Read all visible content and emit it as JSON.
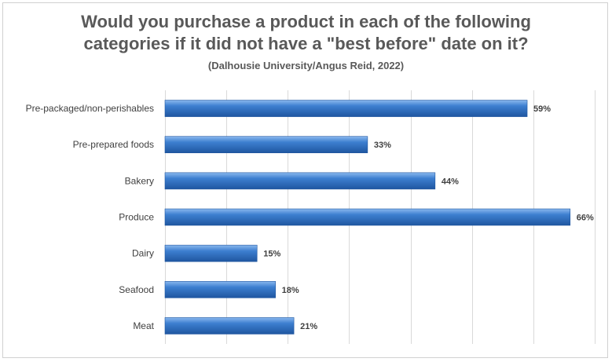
{
  "chart_data": {
    "type": "bar",
    "orientation": "horizontal",
    "title": "Would you purchase a product in each of the following categories if it did not have a \"best before\" date on it?",
    "subtitle": "(Dalhousie University/Angus Reid, 2022)",
    "categories": [
      "Pre-packaged/non-perishables",
      "Pre-prepared foods",
      "Bakery",
      "Produce",
      "Dairy",
      "Seafood",
      "Meat"
    ],
    "values": [
      59,
      33,
      44,
      66,
      15,
      18,
      21
    ],
    "value_labels": [
      "59%",
      "33%",
      "44%",
      "66%",
      "15%",
      "18%",
      "21%"
    ],
    "xlim": [
      0,
      70
    ],
    "grid": true,
    "legend": "none",
    "bar_color": "#2f6fc2",
    "colors": {
      "bar_light": "#6fa6e6",
      "bar_dark": "#1f56a0",
      "grid": "#d9d9d9",
      "text": "#404040",
      "title": "#595959"
    }
  }
}
